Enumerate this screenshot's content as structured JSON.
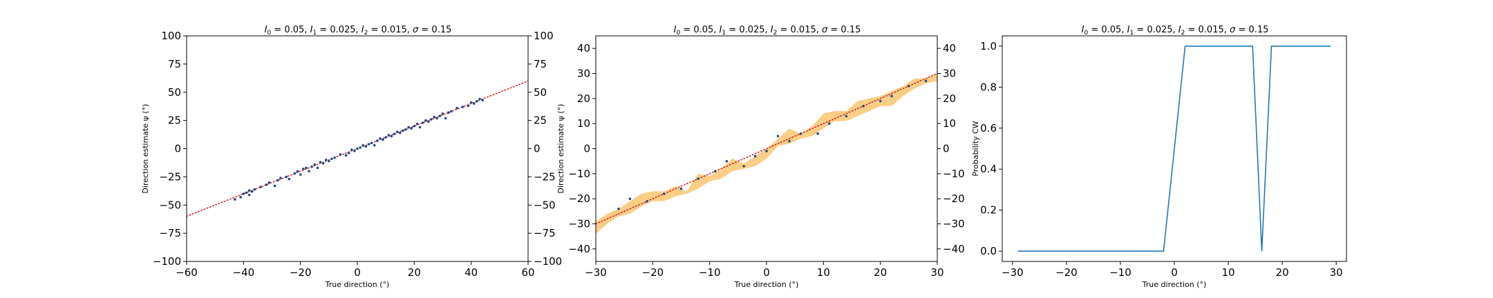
{
  "colors": {
    "scatter": "#1f4e8c",
    "fit_line": "#d62728",
    "band": "#f5a623",
    "prob_line": "#1f77b4"
  },
  "chart_data": [
    {
      "type": "scatter",
      "title": "$I_0 = 0.05$, $I_1 = 0.025$, $I_2 = 0.015$, $\\sigma = 0.15$",
      "xlabel": "True direction (°)",
      "ylabel": "Direction estimate ψ (°)",
      "xlim": [
        -60,
        60
      ],
      "ylim": [
        -100,
        100
      ],
      "xticks": [
        -60,
        -40,
        -20,
        0,
        20,
        40,
        60
      ],
      "yticks": [
        -100,
        -75,
        -50,
        -25,
        0,
        25,
        50,
        75,
        100
      ],
      "right_yticks": [
        -100,
        -75,
        -50,
        -25,
        0,
        25,
        50,
        75,
        100
      ],
      "grid": false,
      "reference_line": {
        "x": [
          -60,
          60
        ],
        "y": [
          -60,
          60
        ],
        "style": "dotted"
      },
      "series": [
        {
          "points": [
            [
              -43,
              -45
            ],
            [
              -41,
              -43
            ],
            [
              -40,
              -40
            ],
            [
              -39,
              -39
            ],
            [
              -38,
              -41
            ],
            [
              -38,
              -37
            ],
            [
              -37,
              -38
            ],
            [
              -36,
              -36
            ],
            [
              -34,
              -34
            ],
            [
              -32,
              -32
            ],
            [
              -31,
              -30
            ],
            [
              -29,
              -33
            ],
            [
              -28,
              -28
            ],
            [
              -27,
              -26
            ],
            [
              -25,
              -25
            ],
            [
              -24,
              -27
            ],
            [
              -22,
              -22
            ],
            [
              -21,
              -20
            ],
            [
              -20,
              -23
            ],
            [
              -19,
              -18
            ],
            [
              -18,
              -17
            ],
            [
              -17,
              -20
            ],
            [
              -16,
              -16
            ],
            [
              -15,
              -14
            ],
            [
              -14,
              -17
            ],
            [
              -13,
              -12
            ],
            [
              -12,
              -13
            ],
            [
              -11,
              -10
            ],
            [
              -10,
              -11
            ],
            [
              -9,
              -9
            ],
            [
              -8,
              -8
            ],
            [
              -6,
              -5
            ],
            [
              -4,
              -6
            ],
            [
              -3,
              -4
            ],
            [
              -2,
              -1
            ],
            [
              -1,
              -2
            ],
            [
              0,
              0
            ],
            [
              1,
              1
            ],
            [
              2,
              3
            ],
            [
              3,
              2
            ],
            [
              4,
              4
            ],
            [
              5,
              5
            ],
            [
              6,
              3
            ],
            [
              7,
              7
            ],
            [
              8,
              9
            ],
            [
              9,
              8
            ],
            [
              10,
              10
            ],
            [
              11,
              12
            ],
            [
              12,
              11
            ],
            [
              13,
              13
            ],
            [
              14,
              15
            ],
            [
              15,
              14
            ],
            [
              16,
              16
            ],
            [
              17,
              17
            ],
            [
              18,
              19
            ],
            [
              19,
              18
            ],
            [
              20,
              20
            ],
            [
              21,
              22
            ],
            [
              22,
              19
            ],
            [
              23,
              23
            ],
            [
              24,
              25
            ],
            [
              25,
              24
            ],
            [
              26,
              26
            ],
            [
              27,
              28
            ],
            [
              28,
              27
            ],
            [
              29,
              29
            ],
            [
              30,
              31
            ],
            [
              31,
              27
            ],
            [
              32,
              32
            ],
            [
              33,
              33
            ],
            [
              35,
              36
            ],
            [
              37,
              37
            ],
            [
              39,
              38
            ],
            [
              40,
              41
            ],
            [
              41,
              40
            ],
            [
              42,
              42
            ],
            [
              43,
              44
            ],
            [
              44,
              43
            ]
          ]
        }
      ]
    },
    {
      "type": "line",
      "title": "$I_0 = 0.05$, $I_1 = 0.025$, $I_2 = 0.015$, $\\sigma = 0.15$",
      "xlabel": "True direction (°)",
      "ylabel": "Direction estimate ψ (°)",
      "xlim": [
        -30,
        30
      ],
      "ylim": [
        -45,
        45
      ],
      "xticks": [
        -30,
        -20,
        -10,
        0,
        10,
        20,
        30
      ],
      "yticks": [
        -40,
        -30,
        -20,
        -10,
        0,
        10,
        20,
        30,
        40
      ],
      "right_yticks": [
        -40,
        -30,
        -20,
        -10,
        0,
        10,
        20,
        30,
        40
      ],
      "grid": false,
      "band": {
        "x": [
          -30,
          -28,
          -26,
          -24,
          -22,
          -20,
          -18,
          -16,
          -14,
          -12,
          -10,
          -8,
          -6,
          -4,
          -2,
          0,
          2,
          4,
          6,
          8,
          10,
          12,
          14,
          16,
          18,
          20,
          22,
          24,
          26,
          28,
          30
        ],
        "lower": [
          -34,
          -30,
          -27,
          -26,
          -23,
          -21,
          -21,
          -19,
          -18,
          -16,
          -13,
          -12,
          -9,
          -8,
          -7,
          -4,
          1,
          2,
          4,
          5,
          8,
          11,
          11,
          13,
          15,
          17,
          17,
          21,
          24,
          26,
          27
        ],
        "upper": [
          -29,
          -26,
          -24,
          -21,
          -18,
          -17,
          -17,
          -15,
          -17,
          -10,
          -11,
          -8,
          -4,
          -6,
          -3,
          0,
          4,
          8,
          6,
          9,
          14,
          15,
          15,
          19,
          20,
          21,
          23,
          25,
          28,
          28,
          30
        ]
      },
      "reference_line": {
        "x": [
          -30,
          30
        ],
        "y": [
          -30,
          30
        ],
        "style": "dotted"
      },
      "points": [
        [
          -26,
          -24
        ],
        [
          -24,
          -20
        ],
        [
          -21,
          -21
        ],
        [
          -18,
          -18
        ],
        [
          -15,
          -16
        ],
        [
          -12,
          -12
        ],
        [
          -9,
          -9
        ],
        [
          -7,
          -5
        ],
        [
          -4,
          -7
        ],
        [
          -2,
          -3
        ],
        [
          0,
          -1
        ],
        [
          2,
          5
        ],
        [
          4,
          3
        ],
        [
          6,
          6
        ],
        [
          9,
          6
        ],
        [
          11,
          10
        ],
        [
          14,
          13
        ],
        [
          17,
          17
        ],
        [
          20,
          19
        ],
        [
          22,
          21
        ],
        [
          25,
          25
        ],
        [
          28,
          27
        ]
      ]
    },
    {
      "type": "line",
      "title": "$I_0 = 0.05$, $I_1 = 0.025$, $I_2 = 0.015$, $\\sigma = 0.15$",
      "xlabel": "True direction (°)",
      "ylabel": "Probability CW",
      "xlim": [
        -31.9,
        31.9
      ],
      "ylim": [
        -0.05,
        1.05
      ],
      "xticks": [
        -30,
        -20,
        -10,
        0,
        10,
        20,
        30
      ],
      "yticks": [
        0.0,
        0.2,
        0.4,
        0.6,
        0.8,
        1.0
      ],
      "grid": false,
      "series": [
        {
          "x": [
            -29,
            -2,
            2,
            14.5,
            16.2,
            18,
            29
          ],
          "y": [
            0,
            0,
            1,
            1,
            0,
            1,
            1
          ]
        }
      ]
    }
  ]
}
